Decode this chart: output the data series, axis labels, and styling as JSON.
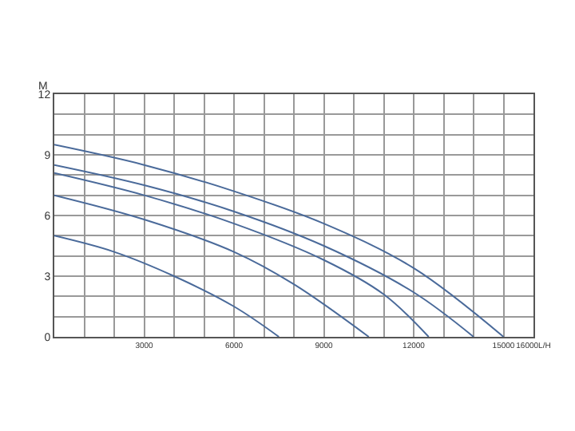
{
  "chart_data": {
    "type": "line",
    "ylabel": "M",
    "xlim": [
      0,
      16000
    ],
    "ylim": [
      0,
      12
    ],
    "xticks": [
      3000,
      6000,
      9000,
      12000,
      15000,
      {
        "value": 16000,
        "label": "16000L/H"
      }
    ],
    "yticks": [
      0,
      3,
      6,
      9,
      12
    ],
    "grid": true,
    "marker": "none",
    "line_style": "solid",
    "series": [
      {
        "color": "#4a6a9a",
        "x": [
          0,
          3000,
          6000,
          9000,
          12000,
          15000
        ],
        "values": [
          9.5,
          8.5,
          7.2,
          5.6,
          3.4,
          0
        ]
      },
      {
        "color": "#4a6a9a",
        "x": [
          0,
          3000,
          6000,
          9000,
          12000,
          14000
        ],
        "values": [
          8.5,
          7.5,
          6.2,
          4.5,
          2.2,
          0
        ]
      },
      {
        "color": "#4a6a9a",
        "x": [
          0,
          3000,
          6000,
          9000,
          11000,
          12500
        ],
        "values": [
          8.1,
          7.0,
          5.6,
          3.8,
          2.1,
          0
        ]
      },
      {
        "color": "#4a6a9a",
        "x": [
          0,
          3000,
          6000,
          8000,
          10500
        ],
        "values": [
          7.0,
          5.8,
          4.2,
          2.6,
          0
        ]
      },
      {
        "color": "#4a6a9a",
        "x": [
          0,
          2000,
          4000,
          6000,
          7500
        ],
        "values": [
          5.0,
          4.2,
          3.0,
          1.5,
          0
        ]
      }
    ]
  }
}
